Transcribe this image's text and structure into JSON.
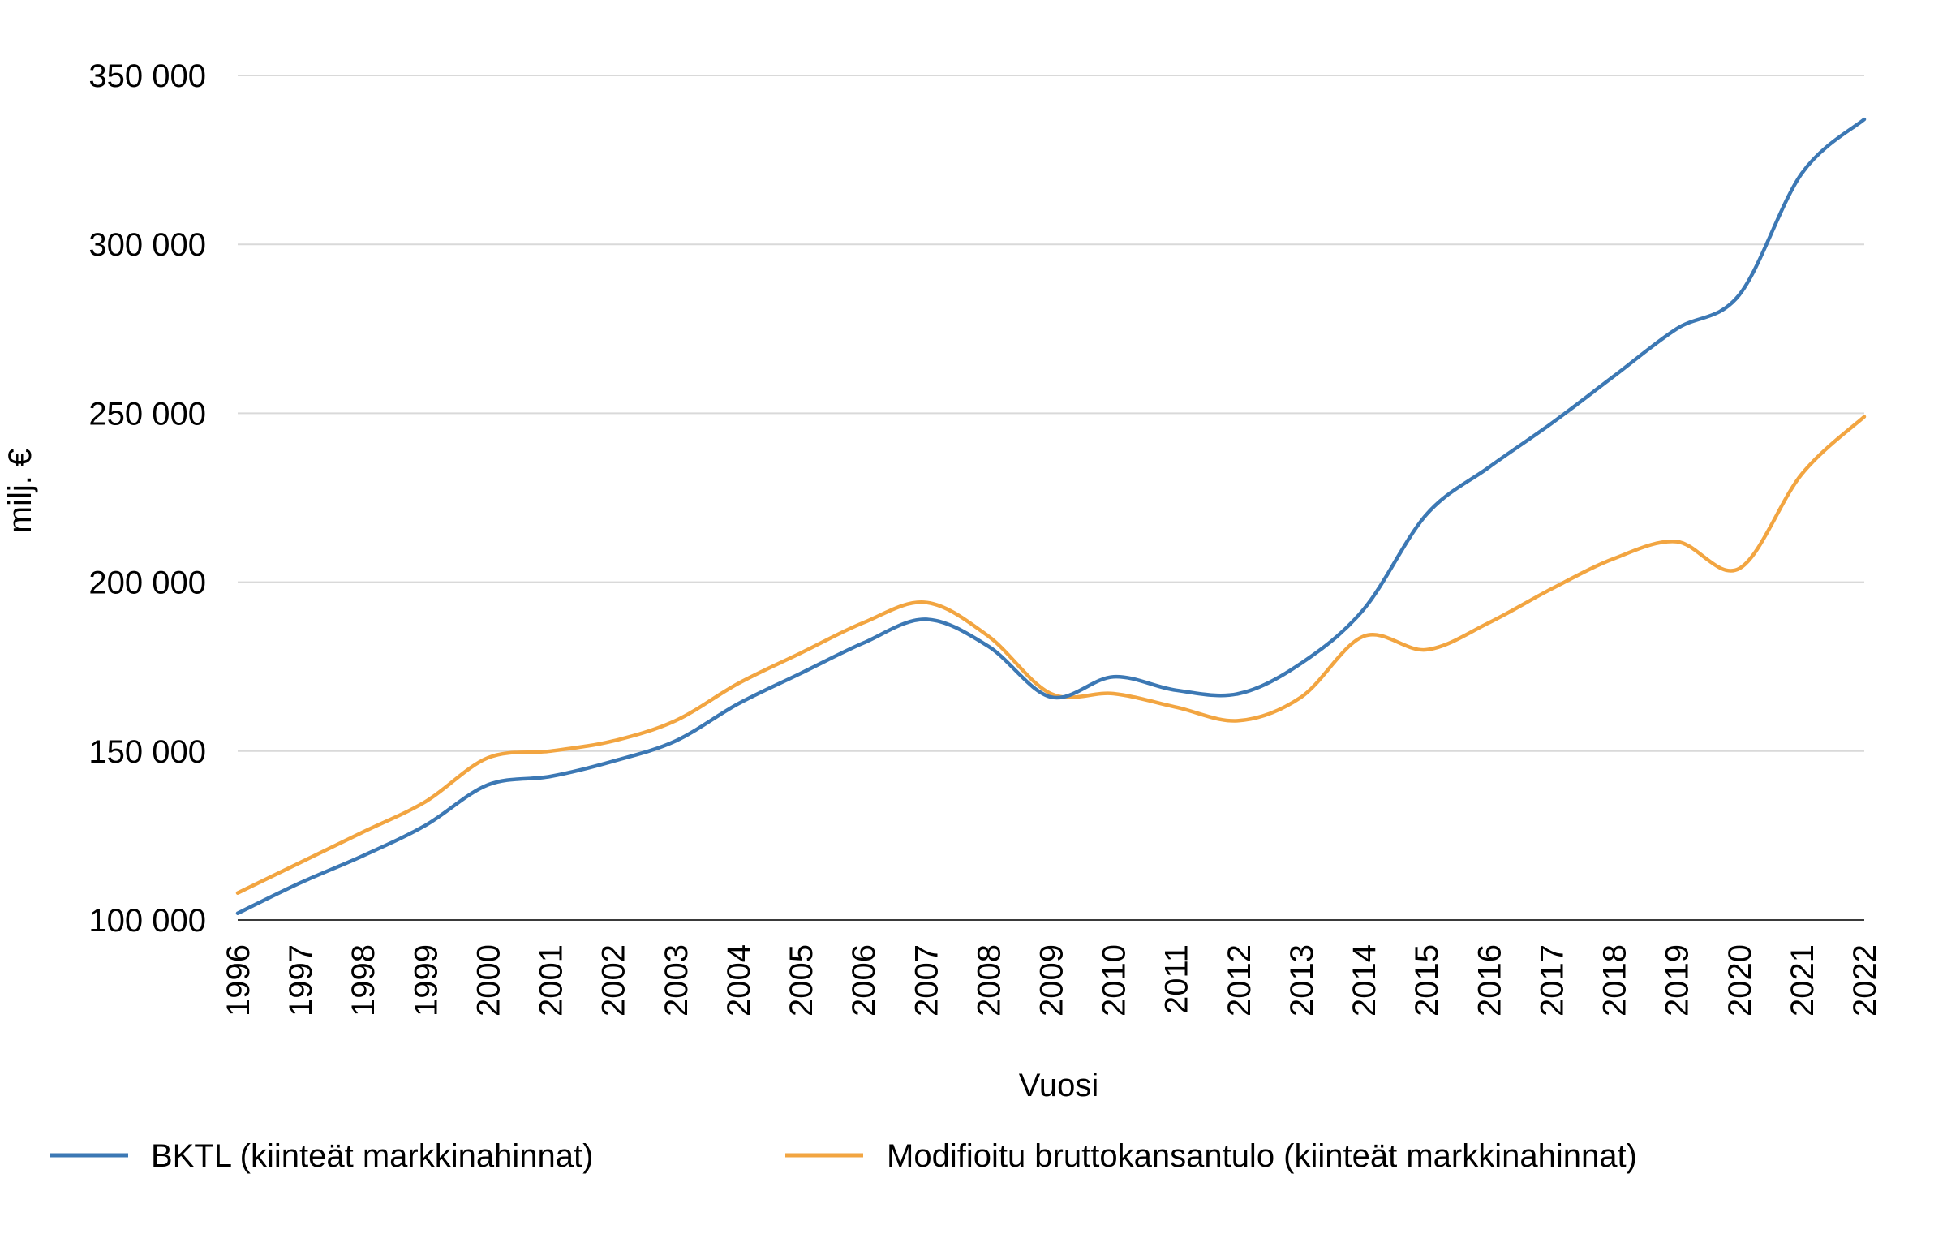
{
  "chart_data": {
    "type": "line",
    "title": "",
    "xlabel": "Vuosi",
    "ylabel": "milj. €",
    "ylim": [
      100000,
      350000
    ],
    "y_ticks": [
      "100 000",
      "150 000",
      "200 000",
      "250 000",
      "300 000",
      "350 000"
    ],
    "y_tick_values": [
      100000,
      150000,
      200000,
      250000,
      300000,
      350000
    ],
    "grid": "horizontal",
    "legend_position": "bottom",
    "x": [
      1996,
      1997,
      1998,
      1999,
      2000,
      2001,
      2002,
      2003,
      2004,
      2005,
      2006,
      2007,
      2008,
      2009,
      2010,
      2011,
      2012,
      2013,
      2014,
      2015,
      2016,
      2017,
      2018,
      2019,
      2020,
      2021,
      2022
    ],
    "series": [
      {
        "name": "BKTL (kiinteät markkinahinnat)",
        "color": "#3c78b4",
        "values": [
          102000,
          111000,
          119000,
          128000,
          140000,
          142500,
          147000,
          153000,
          164000,
          173000,
          182000,
          189000,
          181000,
          166000,
          172000,
          168000,
          167000,
          176000,
          192000,
          220000,
          234000,
          247000,
          261000,
          275000,
          285000,
          321000,
          337000
        ]
      },
      {
        "name": "Modifioitu bruttokansantulo (kiinteät markkinahinnat)",
        "color": "#f2a541",
        "values": [
          108000,
          117000,
          126000,
          135000,
          148000,
          150000,
          153000,
          159000,
          170000,
          179000,
          188000,
          194000,
          184000,
          167000,
          167000,
          163000,
          159000,
          166000,
          184000,
          180000,
          188000,
          198000,
          207000,
          212000,
          204000,
          232000,
          249000
        ]
      }
    ]
  }
}
